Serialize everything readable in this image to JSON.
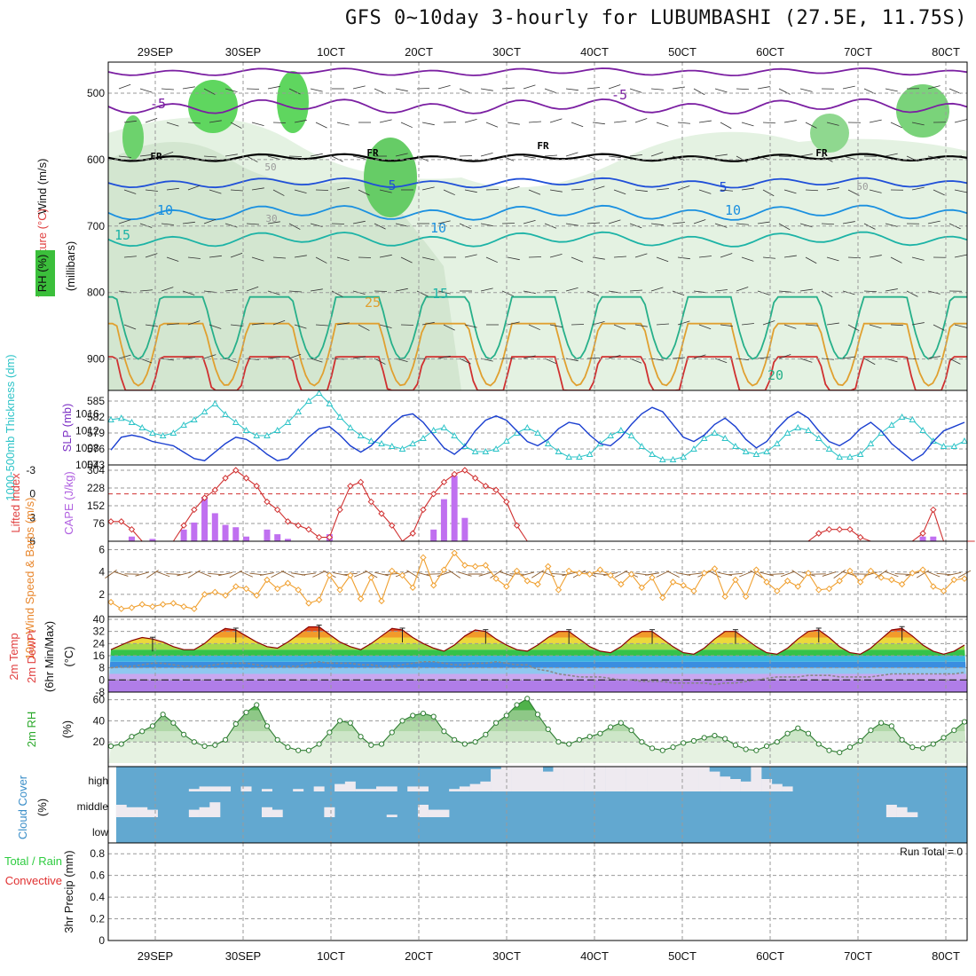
{
  "title": "GFS 0~10day 3-hourly for LUBUMBASHI (27.5E, 11.75S)",
  "chart_data": {
    "type": "meteogram",
    "x_date_labels": [
      "29SEP",
      "30SEP",
      "10CT",
      "20CT",
      "30CT",
      "40CT",
      "50CT",
      "60CT",
      "70CT",
      "80CT"
    ],
    "panels": {
      "upper_air": {
        "ylabel_rh": "RH (%)",
        "ylabel_temp": "Temperature (°C)",
        "ylabel_wind": "Wind (m/s)",
        "ylabel_units": "(millibars)",
        "yticks": [
          "500",
          "600",
          "700",
          "800",
          "900"
        ],
        "contour_labels": [
          "-5",
          "FR",
          "5",
          "10",
          "15",
          "20",
          "25",
          "30",
          "50"
        ],
        "colors": {
          "temp_cold": "#7b1fa2",
          "freezing": "#000000",
          "temp_5": "#1f4fd8",
          "temp_10": "#1a90e0",
          "temp_15": "#1cb3a6",
          "temp_20": "#27b08a",
          "temp_25": "#e0a030",
          "temp_30": "#d03030",
          "rh_high": "#33cc33"
        }
      },
      "pressure": {
        "ylabel_left": "1000-500mb Thickness (dm)",
        "ylabel_right": "SLP (mb)",
        "yticks_left": [
          "573",
          "576",
          "579",
          "582",
          "585"
        ],
        "yticks_right": [
          "1004",
          "1008",
          "1012",
          "1016"
        ],
        "thickness_dm": [
          581.5,
          581.8,
          581,
          580,
          579,
          578.5,
          579,
          580.5,
          581.5,
          583,
          584.5,
          582.5,
          581,
          579.5,
          578.5,
          578.5,
          579.5,
          581,
          583,
          585,
          586.5,
          584.5,
          582,
          580,
          578.5,
          577.5,
          577,
          576.5,
          576,
          577,
          578,
          579.5,
          580,
          578.5,
          576.5,
          575.5,
          575.5,
          576,
          577.5,
          579,
          580,
          579,
          577,
          575.5,
          574.5,
          574.5,
          575,
          577,
          578.5,
          579.5,
          578.5,
          576.5,
          575,
          574,
          574,
          574.5,
          576,
          578,
          579,
          578,
          576.5,
          575.5,
          575,
          575.5,
          577,
          579,
          580,
          579.5,
          578,
          576,
          574.5,
          574.5,
          575,
          577,
          579,
          580.5,
          582,
          581.5,
          579.5,
          577.5,
          576.5,
          576.5,
          577.5
        ],
        "slp_mb": [
          1007.5,
          1010.5,
          1011,
          1010.5,
          1009.5,
          1009,
          1008.5,
          1007,
          1005.5,
          1005,
          1007,
          1009,
          1010.5,
          1010,
          1008.5,
          1006.5,
          1005,
          1005.5,
          1008,
          1010.5,
          1012.5,
          1013,
          1011,
          1008.5,
          1007,
          1008.5,
          1011,
          1013.5,
          1015.5,
          1016,
          1014,
          1011,
          1008,
          1006.5,
          1008.5,
          1012,
          1014.5,
          1015.5,
          1014.5,
          1012,
          1009.5,
          1008.5,
          1010,
          1012.5,
          1014,
          1013.5,
          1011,
          1009,
          1008.5,
          1010.5,
          1013.5,
          1016,
          1017.5,
          1016.5,
          1013.5,
          1010.5,
          1009.5,
          1011,
          1013.5,
          1015,
          1013,
          1010,
          1008,
          1009.5,
          1012.5,
          1015,
          1016.5,
          1015,
          1012,
          1009.5,
          1008.5,
          1010,
          1012.5,
          1014,
          1012,
          1009,
          1007,
          1005,
          1006.5,
          1009.5,
          1012,
          1013,
          1014
        ]
      },
      "instability": {
        "ylabel_left": "Lifted Index",
        "ylabel_right": "CAPE (J/kg)",
        "yticks_left": [
          "-3",
          "0",
          "3",
          "6"
        ],
        "yticks_right": [
          "76",
          "152",
          "228",
          "304"
        ],
        "lifted_index": [
          3.5,
          3.5,
          4.5,
          6,
          7,
          8,
          6,
          4,
          2,
          0.5,
          -0.5,
          -2,
          -3,
          -2,
          -1,
          1,
          2,
          3.5,
          4,
          4.5,
          5.5,
          5.5,
          2,
          -1,
          -1.5,
          1,
          2.5,
          4,
          6,
          5,
          2,
          0,
          -1.5,
          -2.5,
          -3,
          -2,
          -1,
          -0.5,
          1,
          4,
          6,
          7.5,
          8.5,
          9,
          9,
          9,
          9,
          9,
          9,
          9,
          9,
          9,
          9,
          9,
          9,
          9,
          9,
          9,
          9,
          9,
          9,
          9,
          9,
          9,
          9,
          9,
          9,
          9,
          5,
          4.5,
          4.5,
          4.5,
          5.5,
          8,
          9,
          9,
          9,
          6,
          5,
          2,
          6,
          9,
          9,
          6.5
        ],
        "cape_jkg": [
          0,
          0,
          20,
          0,
          10,
          0,
          0,
          50,
          80,
          190,
          120,
          70,
          60,
          20,
          0,
          50,
          30,
          10,
          0,
          0,
          0,
          30,
          0,
          0,
          0,
          0,
          0,
          0,
          0,
          0,
          0,
          50,
          180,
          280,
          100,
          0,
          0,
          0,
          0,
          0,
          0,
          0,
          0,
          0,
          0,
          0,
          0,
          0,
          0,
          0,
          0,
          0,
          0,
          0,
          0,
          0,
          0,
          0,
          0,
          0,
          0,
          0,
          0,
          0,
          0,
          0,
          0,
          0,
          0,
          0,
          0,
          0,
          0,
          0,
          0,
          0,
          0,
          0,
          20,
          20,
          0,
          0,
          0
        ],
        "colors": {
          "lifted_index": "#d03030",
          "cape": "#c070f0"
        }
      },
      "wind10m": {
        "ylabel": "10m Wind Speed & Barbs (m/s)",
        "yticks": [
          "2",
          "4",
          "6"
        ],
        "speed_ms": [
          1.3,
          0.7,
          0.8,
          1.1,
          0.9,
          1.1,
          1.2,
          0.9,
          0.7,
          2,
          2.2,
          1.9,
          2.7,
          2.5,
          1.9,
          3.3,
          2.5,
          3,
          2.4,
          1.2,
          1.5,
          3.7,
          2.4,
          3.7,
          1.6,
          3.5,
          1.4,
          4.1,
          3.7,
          2.6,
          5.3,
          2.8,
          4.2,
          5.7,
          4.6,
          4.5,
          4.6,
          3.4,
          2.7,
          4.1,
          3.2,
          2.9,
          4.5,
          2.4,
          4.1,
          3.9,
          3.8,
          4.2,
          3.7,
          2.9,
          3.8,
          2.6,
          3.5,
          1.7,
          3.1,
          2.8,
          2.3,
          3.9,
          4.3,
          1.8,
          3.3,
          1.8,
          4.2,
          3.1,
          2.3,
          3.2,
          2.7,
          3.9,
          2.4,
          2.5,
          3.2,
          4.1,
          3.1,
          4.1,
          3.5,
          3.3,
          2.9,
          3.9,
          4.2,
          2.7,
          2.3,
          3.3,
          3.4
        ],
        "colors": {
          "speed": "#f0a030",
          "barbs": "#8b5a2b"
        }
      },
      "temperature": {
        "ylabel": "2m Temp 2m DewPt (6hr Min/Max) (°C)",
        "yticks": [
          "-8",
          "0",
          "8",
          "16",
          "24",
          "32",
          "40"
        ],
        "temp_c": [
          20,
          23,
          26,
          28,
          27,
          25,
          22,
          20,
          20,
          24,
          30,
          34,
          33,
          29,
          25,
          22,
          21,
          25,
          30,
          35,
          35,
          30,
          25,
          22,
          20,
          24,
          29,
          34,
          33,
          28,
          24,
          21,
          19,
          23,
          29,
          33,
          32,
          27,
          23,
          20,
          19,
          23,
          28,
          32,
          32,
          27,
          22,
          19,
          18,
          22,
          28,
          32,
          32,
          27,
          22,
          18,
          17,
          21,
          27,
          32,
          32,
          27,
          22,
          18,
          17,
          21,
          27,
          32,
          33,
          28,
          22,
          18,
          17,
          21,
          27,
          33,
          34,
          29,
          23,
          19,
          17,
          19,
          23
        ],
        "dewpoint_c": [
          8,
          9,
          9,
          10,
          11,
          11,
          10,
          9,
          9,
          9,
          10,
          11,
          11,
          11,
          10,
          9,
          9,
          9,
          9,
          11,
          12,
          11,
          11,
          11,
          10,
          10,
          9,
          9,
          10,
          11,
          12,
          12,
          11,
          10,
          10,
          11,
          11,
          12,
          11,
          10,
          10,
          7,
          6,
          4,
          3,
          2,
          2,
          2,
          1,
          0,
          0,
          -1,
          -1,
          -1,
          -2,
          -2,
          -2,
          -2,
          -3,
          -2,
          -2,
          -1,
          0,
          1,
          2,
          2,
          2,
          3,
          3,
          3,
          2,
          2,
          2,
          2,
          3,
          4,
          4,
          4,
          4,
          4,
          4,
          4,
          5
        ],
        "colors": {
          "temp": "#8b0000",
          "dewpoint": "#888888"
        }
      },
      "rh2m": {
        "ylabel": "2m RH (%)",
        "yticks": [
          "20",
          "40",
          "60"
        ],
        "rh_pct": [
          16,
          18,
          25,
          30,
          35,
          46,
          38,
          27,
          20,
          16,
          17,
          22,
          37,
          48,
          55,
          35,
          22,
          15,
          12,
          12,
          18,
          29,
          40,
          38,
          25,
          17,
          18,
          29,
          40,
          45,
          47,
          44,
          30,
          22,
          18,
          20,
          27,
          38,
          45,
          55,
          61,
          46,
          32,
          20,
          18,
          22,
          25,
          28,
          34,
          38,
          31,
          20,
          14,
          12,
          15,
          19,
          21,
          24,
          26,
          23,
          17,
          13,
          12,
          16,
          20,
          28,
          33,
          28,
          18,
          12,
          10,
          15,
          21,
          31,
          38,
          35,
          22,
          15,
          14,
          18,
          24,
          31,
          39
        ],
        "colors": {
          "rh": "#2e7d32"
        }
      },
      "cloud_cover": {
        "ylabel": "Cloud Cover (%)",
        "levels": [
          "high",
          "middle",
          "low"
        ],
        "high": [
          0,
          0,
          0,
          0,
          0,
          0,
          0,
          0,
          10,
          20,
          20,
          20,
          0,
          20,
          0,
          10,
          0,
          0,
          10,
          0,
          20,
          0,
          30,
          40,
          10,
          10,
          20,
          20,
          0,
          20,
          20,
          0,
          0,
          10,
          20,
          30,
          40,
          90,
          100,
          100,
          100,
          100,
          80,
          100,
          100,
          100,
          100,
          100,
          100,
          100,
          100,
          100,
          100,
          100,
          100,
          100,
          100,
          100,
          80,
          60,
          50,
          40,
          100,
          50,
          30,
          20,
          0,
          0,
          0,
          0,
          0,
          0,
          0,
          0,
          0,
          0,
          0,
          0,
          0,
          0,
          0,
          0,
          0
        ],
        "middle": [
          0,
          50,
          40,
          40,
          30,
          0,
          0,
          0,
          30,
          40,
          60,
          0,
          0,
          0,
          0,
          40,
          30,
          0,
          0,
          0,
          0,
          40,
          0,
          0,
          0,
          0,
          0,
          10,
          0,
          0,
          50,
          30,
          30,
          0,
          0,
          0,
          0,
          0,
          0,
          0,
          0,
          0,
          0,
          0,
          0,
          0,
          0,
          0,
          0,
          0,
          0,
          0,
          0,
          0,
          0,
          0,
          0,
          0,
          0,
          0,
          0,
          0,
          0,
          0,
          0,
          0,
          0,
          0,
          0,
          0,
          0,
          0,
          0,
          0,
          0,
          50,
          40,
          20,
          0,
          0,
          0,
          0,
          0
        ],
        "low": [
          0,
          0,
          0,
          0,
          0,
          0,
          0,
          0,
          0,
          0,
          0,
          0,
          0,
          0,
          0,
          0,
          0,
          0,
          0,
          0,
          0,
          0,
          0,
          0,
          0,
          0,
          0,
          0,
          0,
          0,
          0,
          0,
          0,
          0,
          0,
          0,
          0,
          0,
          0,
          0,
          0,
          0,
          0,
          0,
          0,
          0,
          0,
          0,
          0,
          0,
          0,
          0,
          0,
          0,
          0,
          0,
          0,
          0,
          0,
          0,
          0,
          0,
          0,
          0,
          0,
          0,
          0,
          0,
          0,
          0,
          0,
          0,
          0,
          0,
          0,
          0,
          0,
          0,
          0,
          0,
          0,
          0,
          0
        ],
        "colors": {
          "cloud": "#eeeaf0",
          "clear": "#62a8d0"
        }
      },
      "precip": {
        "ylabel_total": "Total / Rain",
        "ylabel_conv": "Convective",
        "ylabel": "3hr Precip (mm)",
        "yticks": [
          "0",
          "0.2",
          "0.4",
          "0.6",
          "0.8"
        ],
        "run_total_label": "Run Total = 0",
        "values_mm": [],
        "colors": {
          "total": "#2ecc40",
          "convective": "#e03030"
        }
      }
    }
  }
}
